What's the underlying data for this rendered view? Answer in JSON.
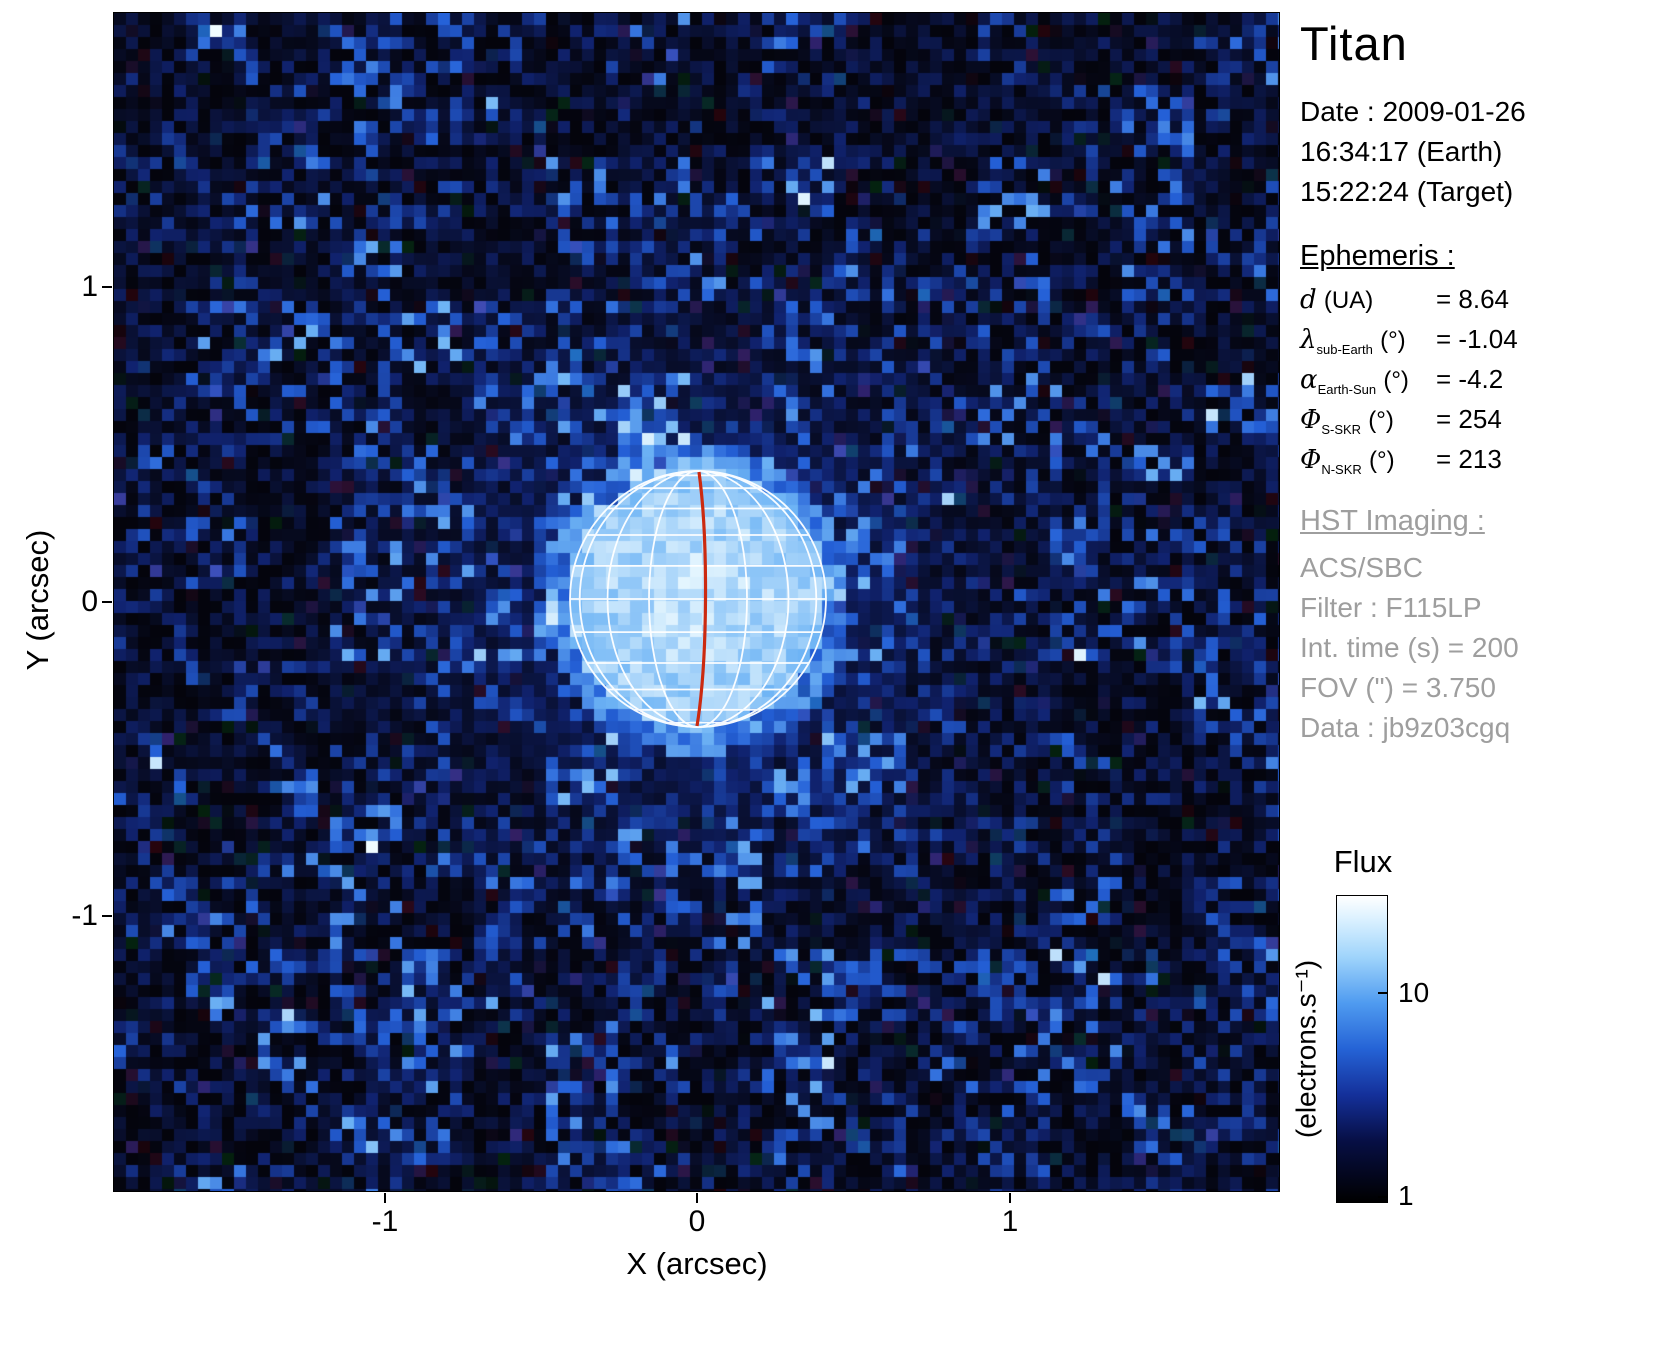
{
  "title": "Titan",
  "info": {
    "date_line": "Date : 2009-01-26",
    "earth_time": "16:34:17 (Earth)",
    "target_time": "15:22:24 (Target)"
  },
  "ephemeris": {
    "heading": "Ephemeris :",
    "rows": [
      {
        "symbol": "d",
        "sub": "",
        "unit": "(UA)",
        "value": "= 8.64"
      },
      {
        "symbol": "λ",
        "sub": "sub-Earth",
        "unit": "(°)",
        "value": "= -1.04"
      },
      {
        "symbol": "α",
        "sub": "Earth-Sun",
        "unit": "(°)",
        "value": "= -4.2"
      },
      {
        "symbol": "Φ",
        "sub": "S-SKR",
        "unit": "(°)",
        "value": "= 254"
      },
      {
        "symbol": "Φ",
        "sub": "N-SKR",
        "unit": "(°)",
        "value": "= 213"
      }
    ]
  },
  "hst": {
    "heading": "HST Imaging :",
    "lines": [
      "ACS/SBC",
      "Filter : F115LP",
      "Int. time (s) = 200",
      "FOV (\") = 3.750",
      "Data : jb9z03cgq"
    ]
  },
  "colorbar": {
    "title": "Flux",
    "axis_label": "(electrons.s⁻¹)",
    "tick_top": "10",
    "tick_bottom": "1"
  },
  "axes": {
    "xlabel": "X (arcsec)",
    "ylabel": "Y (arcsec)",
    "x_ticks": [
      "-1",
      "0",
      "1"
    ],
    "y_ticks": [
      "1",
      "0",
      "-1"
    ]
  },
  "chart_data": {
    "type": "heatmap",
    "title": "Titan",
    "xlabel": "X (arcsec)",
    "ylabel": "Y (arcsec)",
    "xlim": [
      -1.875,
      1.875
    ],
    "ylim": [
      -1.875,
      1.875
    ],
    "x_ticks": [
      -1,
      0,
      1
    ],
    "y_ticks": [
      -1,
      0,
      1
    ],
    "fov_arcsec": 3.75,
    "colorbar": {
      "label": "Flux (electrons.s⁻¹)",
      "scale": "log",
      "ticks": [
        1,
        10
      ],
      "range": [
        1,
        30
      ]
    },
    "content": {
      "background": "noisy dark blue/black sky pixels, flux ~1-3 electrons/s",
      "target_disk": {
        "center_arcsec": [
          0,
          0
        ],
        "radius_arcsec": 0.41,
        "peak_flux": "~20-30 electrons/s"
      },
      "overlay": "white latitude/longitude wireframe grid on Titan disk with red central meridian, sub-Earth latitude -1.04°"
    }
  }
}
